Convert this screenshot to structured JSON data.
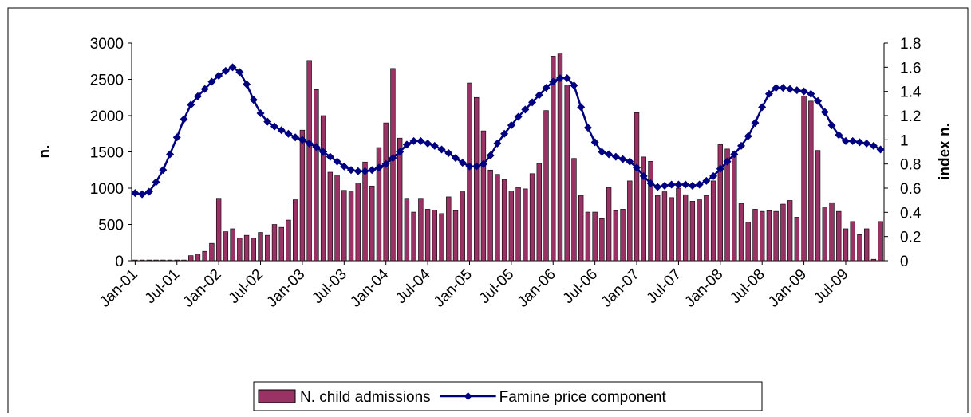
{
  "chart_data": {
    "type": "bar_line",
    "y_label": "n.",
    "y2_label": "index n.",
    "categories": [
      "Jan-01",
      null,
      null,
      null,
      null,
      null,
      "Jul-01",
      null,
      null,
      null,
      null,
      null,
      "Jan-02",
      null,
      null,
      null,
      null,
      null,
      "Jul-02",
      null,
      null,
      null,
      null,
      null,
      "Jan-03",
      null,
      null,
      null,
      null,
      null,
      "Jul-03",
      null,
      null,
      null,
      null,
      null,
      "Jan-04",
      null,
      null,
      null,
      null,
      null,
      "Jul-04",
      null,
      null,
      null,
      null,
      null,
      "Jan-05",
      null,
      null,
      null,
      null,
      null,
      "Jul-05",
      null,
      null,
      null,
      null,
      null,
      "Jan-06",
      null,
      null,
      null,
      null,
      null,
      "Jul-06",
      null,
      null,
      null,
      null,
      null,
      "Jan-07",
      null,
      null,
      null,
      null,
      null,
      "Jul-07",
      null,
      null,
      null,
      null,
      null,
      "Jan-08",
      null,
      null,
      null,
      null,
      null,
      "Jul-08",
      null,
      null,
      null,
      null,
      null,
      "Jan-09",
      null,
      null,
      null,
      null,
      null,
      "Jul-09",
      null,
      null,
      null,
      null,
      null
    ],
    "series": [
      {
        "name": "N. child admissions",
        "type": "bar",
        "color": "#993366",
        "values": [
          10,
          10,
          10,
          10,
          10,
          10,
          10,
          10,
          70,
          90,
          130,
          240,
          860,
          400,
          440,
          310,
          350,
          310,
          390,
          350,
          500,
          460,
          560,
          840,
          1800,
          2760,
          2360,
          2000,
          1220,
          1180,
          970,
          950,
          1070,
          1360,
          1030,
          1560,
          1900,
          2650,
          1690,
          860,
          670,
          860,
          710,
          700,
          650,
          880,
          690,
          950,
          2450,
          2250,
          1790,
          1250,
          1190,
          1120,
          960,
          1010,
          990,
          1200,
          1340,
          2070,
          2820,
          2850,
          2420,
          1410,
          900,
          670,
          670,
          580,
          1010,
          690,
          710,
          1100,
          2040,
          1430,
          1370,
          900,
          950,
          870,
          1000,
          910,
          820,
          840,
          900,
          1100,
          1600,
          1540,
          1500,
          790,
          530,
          710,
          680,
          690,
          680,
          780,
          830,
          600,
          2270,
          2200,
          1520,
          730,
          800,
          680,
          440,
          540,
          360,
          440,
          20,
          540
        ]
      },
      {
        "name": "Famine price component",
        "type": "line",
        "axis": "y2",
        "color": "#000080",
        "values": [
          0.56,
          0.55,
          0.57,
          0.65,
          0.75,
          0.88,
          1.02,
          1.17,
          1.29,
          1.36,
          1.42,
          1.48,
          1.53,
          1.57,
          1.6,
          1.56,
          1.46,
          1.33,
          1.22,
          1.15,
          1.11,
          1.08,
          1.05,
          1.02,
          1.0,
          0.97,
          0.94,
          0.9,
          0.86,
          0.82,
          0.78,
          0.75,
          0.74,
          0.74,
          0.75,
          0.77,
          0.8,
          0.85,
          0.9,
          0.96,
          0.99,
          0.99,
          0.97,
          0.95,
          0.92,
          0.89,
          0.85,
          0.81,
          0.78,
          0.78,
          0.8,
          0.87,
          0.97,
          1.05,
          1.12,
          1.19,
          1.25,
          1.31,
          1.37,
          1.43,
          1.48,
          1.51,
          1.51,
          1.45,
          1.27,
          1.1,
          0.98,
          0.9,
          0.88,
          0.86,
          0.84,
          0.82,
          0.77,
          0.7,
          0.64,
          0.61,
          0.62,
          0.63,
          0.63,
          0.63,
          0.62,
          0.63,
          0.66,
          0.7,
          0.76,
          0.82,
          0.88,
          0.95,
          1.03,
          1.14,
          1.27,
          1.38,
          1.43,
          1.43,
          1.42,
          1.41,
          1.4,
          1.38,
          1.32,
          1.23,
          1.12,
          1.04,
          0.99,
          0.99,
          0.98,
          0.97,
          0.95,
          0.92
        ]
      }
    ],
    "ylim": [
      0,
      3000
    ],
    "yticks": [
      0,
      500,
      1000,
      1500,
      2000,
      2500,
      3000
    ],
    "y2lim": [
      0,
      1.8
    ],
    "y2ticks": [
      0,
      0.2,
      0.4,
      0.6,
      0.8,
      1,
      1.2,
      1.4,
      1.6,
      1.8
    ],
    "legend": "bottom"
  }
}
